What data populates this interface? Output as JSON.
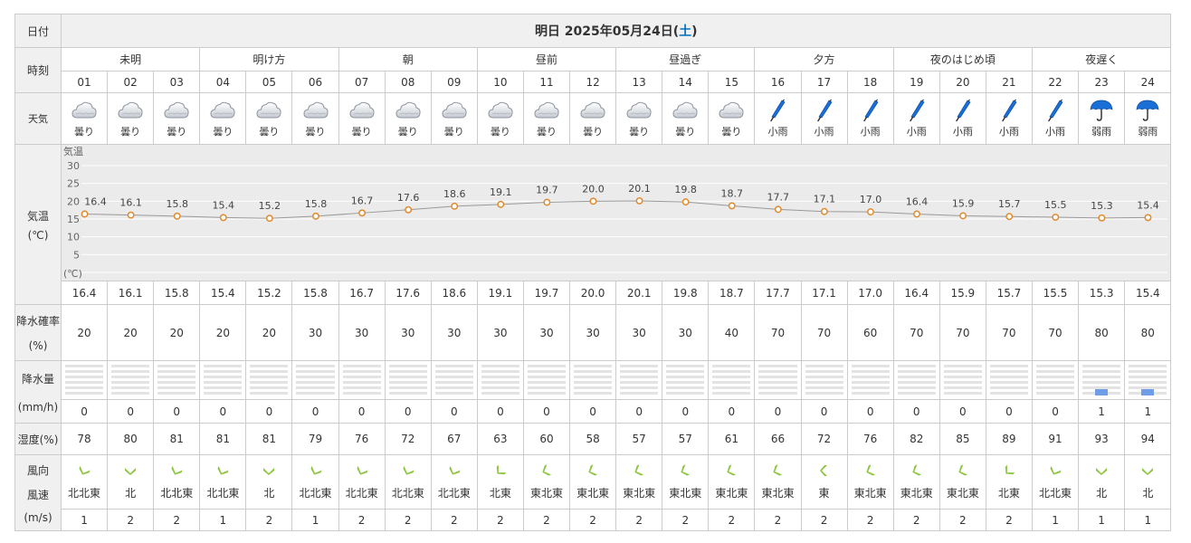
{
  "labels": {
    "date": "日付",
    "time": "時刻",
    "weather": "天気",
    "temp_main": "気温",
    "temp_unit": "(℃)",
    "prob_main": "降水確率",
    "prob_unit": "(%)",
    "amount_main": "降水量",
    "amount_unit": "(mm/h)",
    "humidity": "湿度(%)",
    "wind_dir": "風向",
    "wind_speed": "風速",
    "wind_unit": "(m/s)"
  },
  "date": {
    "prefix": "明日 2025年05月24日(",
    "day": "土",
    "suffix": ")",
    "day_color": "#0070c0"
  },
  "periods": [
    "未明",
    "明け方",
    "朝",
    "昼前",
    "昼過ぎ",
    "夕方",
    "夜のはじめ頃",
    "夜遅く"
  ],
  "hours": [
    "01",
    "02",
    "03",
    "04",
    "05",
    "06",
    "07",
    "08",
    "09",
    "10",
    "11",
    "12",
    "13",
    "14",
    "15",
    "16",
    "17",
    "18",
    "19",
    "20",
    "21",
    "22",
    "23",
    "24"
  ],
  "weather": [
    {
      "label": "曇り",
      "icon": "cloud-icon"
    },
    {
      "label": "曇り",
      "icon": "cloud-icon"
    },
    {
      "label": "曇り",
      "icon": "cloud-icon"
    },
    {
      "label": "曇り",
      "icon": "cloud-icon"
    },
    {
      "label": "曇り",
      "icon": "cloud-icon"
    },
    {
      "label": "曇り",
      "icon": "cloud-icon"
    },
    {
      "label": "曇り",
      "icon": "cloud-icon"
    },
    {
      "label": "曇り",
      "icon": "cloud-icon"
    },
    {
      "label": "曇り",
      "icon": "cloud-icon"
    },
    {
      "label": "曇り",
      "icon": "cloud-icon"
    },
    {
      "label": "曇り",
      "icon": "cloud-icon"
    },
    {
      "label": "曇り",
      "icon": "cloud-icon"
    },
    {
      "label": "曇り",
      "icon": "cloud-icon"
    },
    {
      "label": "曇り",
      "icon": "cloud-icon"
    },
    {
      "label": "曇り",
      "icon": "cloud-icon"
    },
    {
      "label": "小雨",
      "icon": "closed-umbrella-icon"
    },
    {
      "label": "小雨",
      "icon": "closed-umbrella-icon"
    },
    {
      "label": "小雨",
      "icon": "closed-umbrella-icon"
    },
    {
      "label": "小雨",
      "icon": "closed-umbrella-icon"
    },
    {
      "label": "小雨",
      "icon": "closed-umbrella-icon"
    },
    {
      "label": "小雨",
      "icon": "closed-umbrella-icon"
    },
    {
      "label": "小雨",
      "icon": "closed-umbrella-icon"
    },
    {
      "label": "弱雨",
      "icon": "open-umbrella-icon"
    },
    {
      "label": "弱雨",
      "icon": "open-umbrella-icon"
    }
  ],
  "chart_data": {
    "type": "line",
    "title": "",
    "xlabel": "",
    "ylabel": "気温",
    "unit_label": "(℃)",
    "x": [
      "01",
      "02",
      "03",
      "04",
      "05",
      "06",
      "07",
      "08",
      "09",
      "10",
      "11",
      "12",
      "13",
      "14",
      "15",
      "16",
      "17",
      "18",
      "19",
      "20",
      "21",
      "22",
      "23",
      "24"
    ],
    "series": [
      {
        "values": [
          16.4,
          16.1,
          15.8,
          15.4,
          15.2,
          15.8,
          16.7,
          17.6,
          18.6,
          19.1,
          19.7,
          20.0,
          20.1,
          19.8,
          18.7,
          17.7,
          17.1,
          17.0,
          16.4,
          15.9,
          15.7,
          15.5,
          15.3,
          15.4
        ]
      }
    ],
    "y_ticks": [
      5,
      10,
      15,
      20,
      25,
      30
    ],
    "ylim": [
      0,
      30
    ],
    "grid": true,
    "line_color": "#999999",
    "marker_color": "#e08a2c"
  },
  "temps": [
    "16.4",
    "16.1",
    "15.8",
    "15.4",
    "15.2",
    "15.8",
    "16.7",
    "17.6",
    "18.6",
    "19.1",
    "19.7",
    "20.0",
    "20.1",
    "19.8",
    "18.7",
    "17.7",
    "17.1",
    "17.0",
    "16.4",
    "15.9",
    "15.7",
    "15.5",
    "15.3",
    "15.4"
  ],
  "precip_prob": [
    "20",
    "20",
    "20",
    "20",
    "20",
    "30",
    "30",
    "30",
    "30",
    "30",
    "30",
    "30",
    "30",
    "30",
    "40",
    "70",
    "70",
    "60",
    "70",
    "70",
    "70",
    "70",
    "80",
    "80"
  ],
  "precip_amount": [
    "0",
    "0",
    "0",
    "0",
    "0",
    "0",
    "0",
    "0",
    "0",
    "0",
    "0",
    "0",
    "0",
    "0",
    "0",
    "0",
    "0",
    "0",
    "0",
    "0",
    "0",
    "0",
    "1",
    "1"
  ],
  "humidity": [
    "78",
    "80",
    "81",
    "81",
    "81",
    "79",
    "76",
    "72",
    "67",
    "63",
    "60",
    "58",
    "57",
    "57",
    "61",
    "66",
    "72",
    "76",
    "82",
    "85",
    "89",
    "91",
    "93",
    "94"
  ],
  "wind_dir": [
    "北北東",
    "北",
    "北北東",
    "北北東",
    "北",
    "北北東",
    "北北東",
    "北北東",
    "北北東",
    "北東",
    "東北東",
    "東北東",
    "東北東",
    "東北東",
    "東北東",
    "東北東",
    "東",
    "東北東",
    "東北東",
    "東北東",
    "北東",
    "北北東",
    "北",
    "北"
  ],
  "wind_speed": [
    "1",
    "2",
    "2",
    "1",
    "2",
    "1",
    "2",
    "2",
    "2",
    "2",
    "2",
    "2",
    "2",
    "2",
    "2",
    "2",
    "2",
    "2",
    "2",
    "2",
    "2",
    "1",
    "1",
    "1"
  ],
  "colors": {
    "wind_arrow": "#8cc63f",
    "rain_bar": "#6f9ee6",
    "umbrella": "#1a6fd6",
    "cloud": "#b8bec6"
  }
}
